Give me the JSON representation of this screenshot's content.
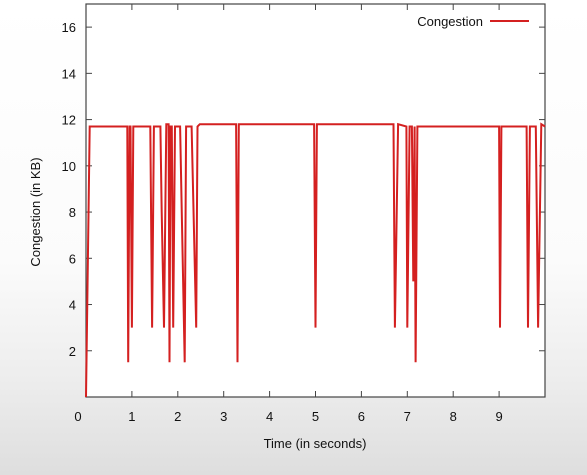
{
  "chart_data": {
    "type": "line",
    "title": "",
    "xlabel": "Time (in seconds)",
    "ylabel": "Congestion (in KB)",
    "xlim": [
      0,
      10
    ],
    "ylim": [
      0,
      17
    ],
    "x_ticks": [
      0,
      1,
      2,
      3,
      4,
      5,
      6,
      7,
      8,
      9
    ],
    "x_tick_labels": [
      "0",
      "1",
      "2",
      "3",
      "4",
      "5",
      "6",
      "7",
      "8",
      "9"
    ],
    "y_ticks": [
      2,
      4,
      6,
      8,
      10,
      12,
      14,
      16
    ],
    "y_tick_labels": [
      "2",
      "4",
      "6",
      "8",
      "10",
      "12",
      "14",
      "16"
    ],
    "legend_position": "top-right",
    "grid": false,
    "series": [
      {
        "name": "Congestion",
        "color": "#d42020",
        "x": [
          0.0,
          0.08,
          0.1,
          0.9,
          0.92,
          0.95,
          0.97,
          1.0,
          1.03,
          1.4,
          1.44,
          1.48,
          1.62,
          1.65,
          1.7,
          1.75,
          1.8,
          1.82,
          1.84,
          1.87,
          1.9,
          1.94,
          2.0,
          2.05,
          2.15,
          2.18,
          2.22,
          2.3,
          2.4,
          2.43,
          2.48,
          3.27,
          3.3,
          3.33,
          4.97,
          5.0,
          5.03,
          6.7,
          6.73,
          6.8,
          6.98,
          7.0,
          7.05,
          7.1,
          7.13,
          7.16,
          7.18,
          7.22,
          9.0,
          9.02,
          9.05,
          9.6,
          9.63,
          9.67,
          9.8,
          9.85,
          9.92,
          10.0
        ],
        "y": [
          0.0,
          11.7,
          11.7,
          11.7,
          1.5,
          11.7,
          11.7,
          3.0,
          11.7,
          11.7,
          3.0,
          11.7,
          11.7,
          8.0,
          3.0,
          11.8,
          11.8,
          1.5,
          11.7,
          11.7,
          3.0,
          11.7,
          11.7,
          11.7,
          1.5,
          11.7,
          11.7,
          11.7,
          3.0,
          11.7,
          11.8,
          11.8,
          1.5,
          11.8,
          11.8,
          3.0,
          11.8,
          11.8,
          3.0,
          11.8,
          11.7,
          3.0,
          11.7,
          11.7,
          5.0,
          11.7,
          1.5,
          11.7,
          11.7,
          3.0,
          11.7,
          11.7,
          3.0,
          11.7,
          11.7,
          3.0,
          11.8,
          11.7
        ]
      }
    ]
  }
}
